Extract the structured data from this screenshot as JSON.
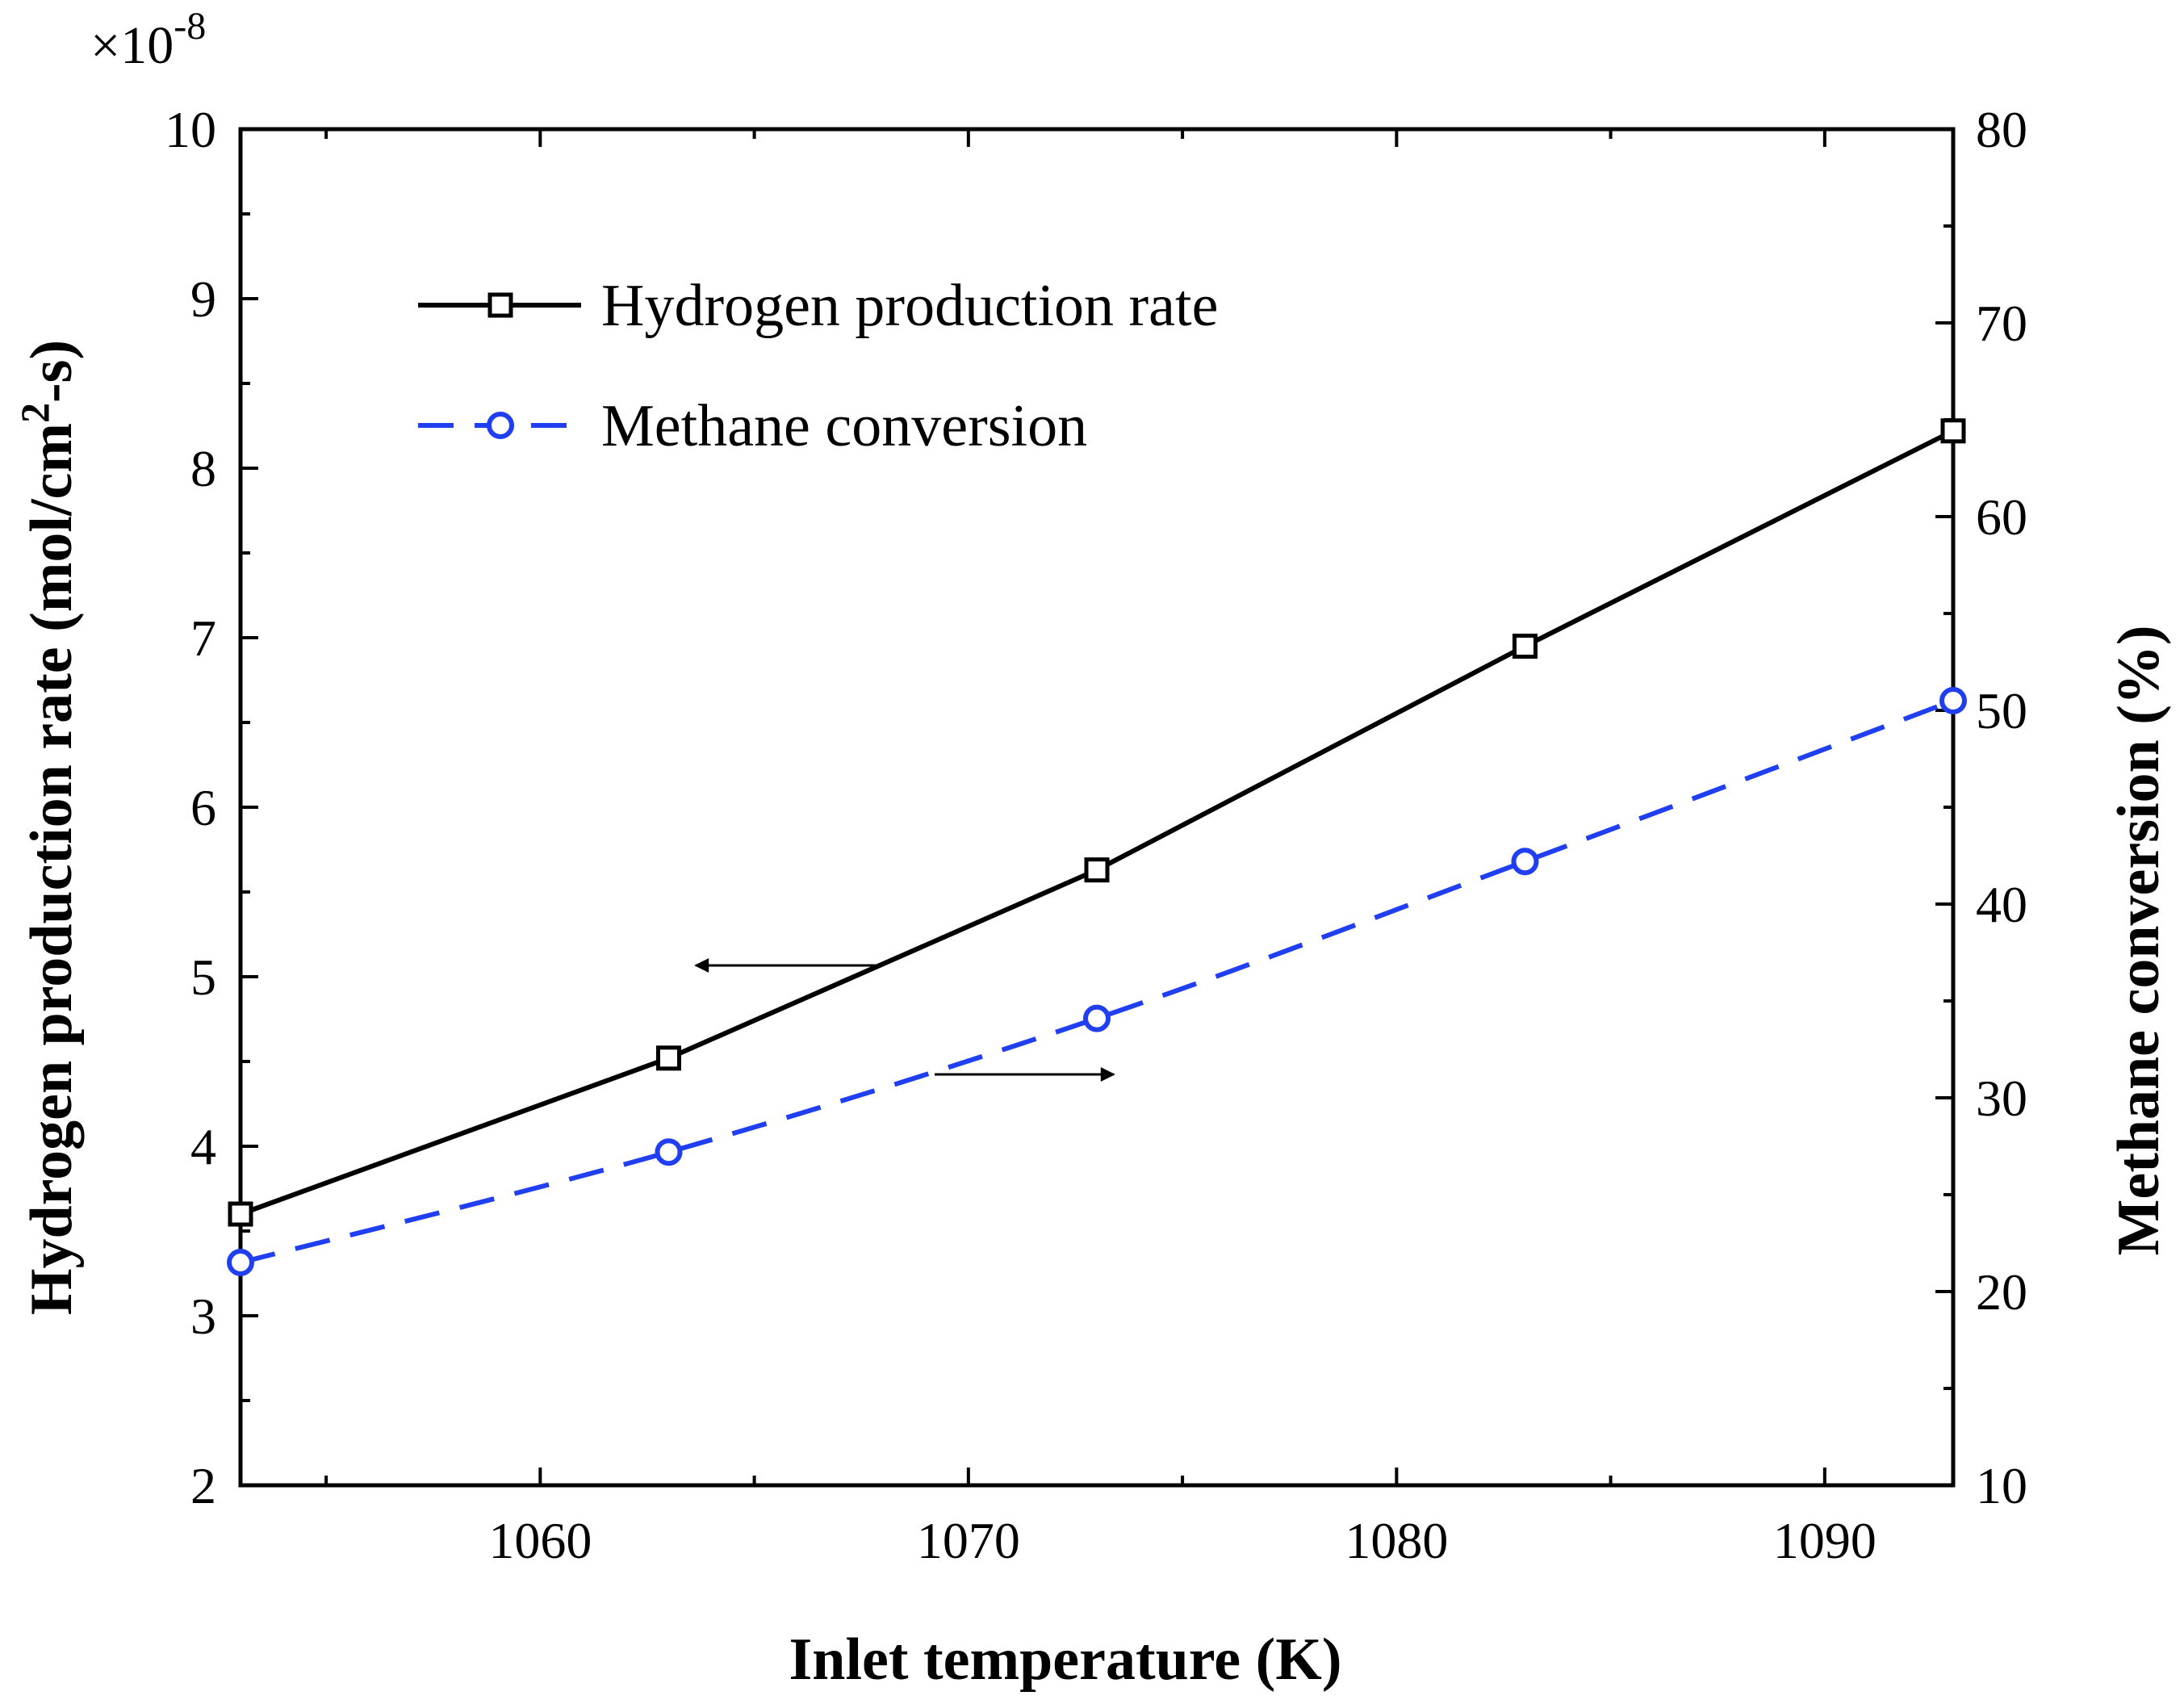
{
  "chart_data": {
    "type": "line",
    "title": "",
    "xlabel": "Inlet temperature (K)",
    "ylabel_left": {
      "main": "Hydrogen production  rate (mol/cm",
      "sup": "2",
      "end": "-s)"
    },
    "ylabel_right": "Methane conversion (%)",
    "left_multiplier": {
      "base": "×10",
      "exp": "-8"
    },
    "xlim": [
      1053,
      1093
    ],
    "ylim_left": [
      2,
      10
    ],
    "ylim_right": [
      10,
      80
    ],
    "x_ticks": [
      1060,
      1070,
      1080,
      1090
    ],
    "y_ticks_left": [
      2,
      3,
      4,
      5,
      6,
      7,
      8,
      9,
      10
    ],
    "y_ticks_right": [
      10,
      20,
      30,
      40,
      50,
      60,
      70,
      80
    ],
    "grid": false,
    "legend_position": "top-left",
    "x": [
      1053,
      1063,
      1073,
      1083,
      1093
    ],
    "series": [
      {
        "name": "Hydrogen production rate",
        "axis": "left",
        "values": [
          3.6,
          4.52,
          5.63,
          6.95,
          8.22
        ],
        "color": "#000000",
        "style": "solid",
        "marker": "square"
      },
      {
        "name": "Methane conversion",
        "axis": "right",
        "values": [
          21.5,
          27.2,
          34.1,
          42.2,
          50.5
        ],
        "color": "#1f3ff0",
        "style": "dashed",
        "marker": "circle"
      }
    ],
    "annotations": [
      {
        "type": "arrow",
        "direction": "left",
        "points_to": "left axis"
      },
      {
        "type": "arrow",
        "direction": "right",
        "points_to": "right axis"
      }
    ]
  }
}
